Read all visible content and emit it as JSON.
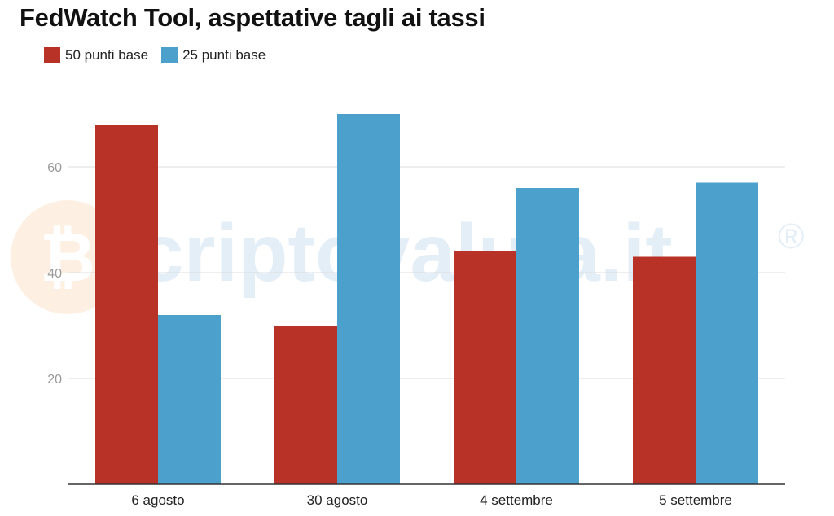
{
  "title": "FedWatch Tool, aspettative tagli ai tassi",
  "watermark": {
    "text": "criptovaluta.it",
    "registered": "®"
  },
  "chart_data": {
    "type": "bar",
    "categories": [
      "6 agosto",
      "30 agosto",
      "4 settembre",
      "5 settembre"
    ],
    "series": [
      {
        "name": "50 punti base",
        "values": [
          68,
          30,
          44,
          43
        ],
        "color": "#b83227"
      },
      {
        "name": "25 punti base",
        "values": [
          32,
          70,
          56,
          57
        ],
        "color": "#4ba1cb"
      }
    ],
    "yticks": [
      20,
      40,
      60
    ],
    "ylim": [
      0,
      75
    ],
    "grid": true,
    "legend": "top-left",
    "xlabel": "",
    "ylabel": ""
  }
}
